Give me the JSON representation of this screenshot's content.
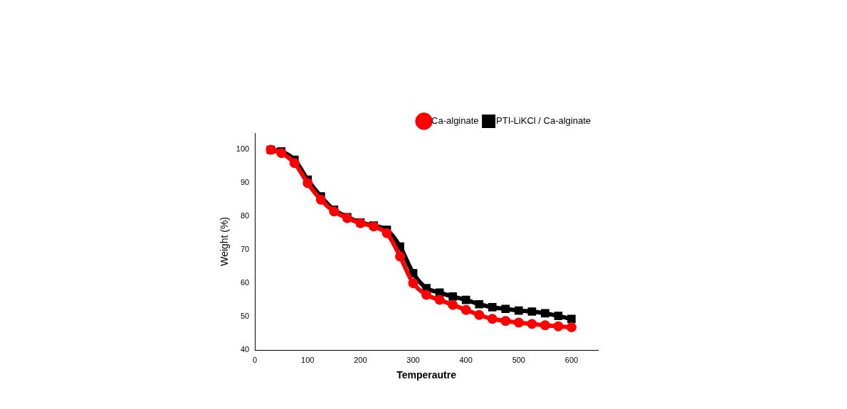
{
  "chart_data": {
    "type": "line",
    "x_label": "Temperautre",
    "y_label": "Weight (%)",
    "x": [
      30,
      50,
      75,
      100,
      125,
      150,
      175,
      200,
      225,
      250,
      275,
      300,
      325,
      350,
      375,
      400,
      425,
      450,
      475,
      500,
      525,
      550,
      575,
      600
    ],
    "series": [
      {
        "name": "PTI-LiKCl / Ca-alginate",
        "color": "#000000",
        "marker": "square",
        "values": [
          100,
          99.5,
          97,
          91,
          86,
          82,
          79.8,
          78.2,
          77.3,
          76,
          71,
          63,
          58.5,
          57.2,
          56,
          55,
          53.7,
          52.8,
          52.3,
          51.8,
          51.5,
          51,
          50.2,
          49.3
        ]
      },
      {
        "name": "Ca-alginate",
        "color": "#ff0000",
        "marker": "circle",
        "values": [
          100,
          99,
          96,
          90,
          85,
          81.5,
          79.5,
          78,
          77,
          75,
          68,
          60,
          56.5,
          55,
          53.5,
          52,
          50.5,
          49.3,
          48.7,
          48.2,
          47.8,
          47.4,
          47.1,
          46.8
        ]
      }
    ],
    "xlim": [
      0,
      650
    ],
    "xticks": [
      0,
      100,
      200,
      300,
      400,
      500,
      600
    ],
    "ylim": [
      40,
      105
    ],
    "yticks": [
      40,
      50,
      60,
      70,
      80,
      90,
      100
    ],
    "grid": false,
    "legend": "upper right"
  }
}
